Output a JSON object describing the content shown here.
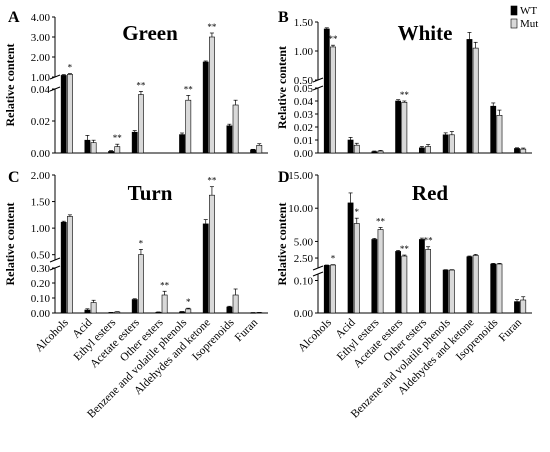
{
  "legend": [
    {
      "label": "WT",
      "color": "#000000"
    },
    {
      "label": "Mut",
      "color": "#d9d9d9"
    }
  ],
  "chart_data": [
    {
      "type": "bar",
      "letter": "A",
      "title": "Green",
      "ylabel": "Relative content",
      "categories": [
        "Alcohols",
        "Acid",
        "Ethyl esters",
        "Acetate esters",
        "Other esters",
        "Benzene and volatile phenols",
        "Aldehydes and ketone",
        "Isoprenoids",
        "Furan"
      ],
      "axis_break": {
        "lower": [
          0,
          0.04
        ],
        "upper": [
          1,
          4
        ]
      },
      "lower_ticks": [
        "0.00",
        "0.02",
        "0.04"
      ],
      "upper_ticks": [
        "1.00",
        "2.00",
        "3.00",
        "4.00"
      ],
      "series": [
        {
          "name": "WT",
          "values": [
            1.08,
            0.008,
            0.001,
            0.013,
            null,
            0.0115,
            1.75,
            0.017,
            0.002
          ],
          "errors": [
            0.04,
            0.003,
            0.0005,
            0.001,
            0,
            0.001,
            0.05,
            0.001,
            0.0003
          ]
        },
        {
          "name": "Mut",
          "values": [
            1.13,
            0.0065,
            0.004,
            0.0365,
            null,
            0.033,
            3.0,
            0.03,
            0.0048
          ],
          "errors": [
            0.04,
            0.0015,
            0.0015,
            0.002,
            0,
            0.003,
            0.2,
            0.003,
            0.001
          ]
        }
      ],
      "significance": [
        [
          "",
          "*"
        ],
        [
          "",
          ""
        ],
        [
          "",
          "**"
        ],
        [
          "",
          "**"
        ],
        [
          "",
          ""
        ],
        [
          "",
          "**"
        ],
        [
          "",
          "**"
        ],
        [
          "",
          ""
        ],
        [
          "",
          ""
        ]
      ]
    },
    {
      "type": "bar",
      "letter": "B",
      "title": "White",
      "ylabel": "Relative content",
      "categories": [
        "Alcohols",
        "Acid",
        "Ethyl esters",
        "Acetate esters",
        "Other esters",
        "Benzene and volatile phenols",
        "Aldehydes and ketone",
        "Isoprenoids",
        "Furan"
      ],
      "axis_break": {
        "lower": [
          0,
          0.05
        ],
        "upper": [
          0.5,
          1.5
        ]
      },
      "lower_ticks": [
        "0.00",
        "0.01",
        "0.02",
        "0.03",
        "0.04",
        "0.05"
      ],
      "upper_ticks": [
        "0.50",
        "1.00",
        "1.50"
      ],
      "series": [
        {
          "name": "WT",
          "values": [
            1.38,
            0.01,
            0.001,
            0.04,
            0.004,
            0.014,
            1.2,
            0.036,
            0.0035
          ],
          "errors": [
            0.02,
            0.002,
            0.0005,
            0.001,
            0.001,
            0.0015,
            0.12,
            0.0025,
            0.0005
          ]
        },
        {
          "name": "Mut",
          "values": [
            1.07,
            0.006,
            0.0015,
            0.039,
            0.005,
            0.014,
            1.05,
            0.029,
            0.003
          ],
          "errors": [
            0.03,
            0.0015,
            0.0005,
            0.001,
            0.0015,
            0.0025,
            0.1,
            0.004,
            0.0008
          ]
        }
      ],
      "significance": [
        [
          "",
          "**"
        ],
        [
          "",
          ""
        ],
        [
          "",
          ""
        ],
        [
          "",
          "**"
        ],
        [
          "",
          ""
        ],
        [
          "",
          ""
        ],
        [
          "",
          ""
        ],
        [
          "",
          ""
        ],
        [
          "",
          ""
        ]
      ]
    },
    {
      "type": "bar",
      "letter": "C",
      "title": "Turn",
      "ylabel": "Relative content",
      "categories": [
        "Alcohols",
        "Acid",
        "Ethyl esters",
        "Acetate esters",
        "Other esters",
        "Benzene and volatile phenols",
        "Aldehydes and ketone",
        "Isoprenoids",
        "Furan"
      ],
      "axis_break": {
        "lower": [
          0,
          0.3
        ],
        "upper": [
          0.4,
          2.0
        ]
      },
      "lower_ticks": [
        "0.00",
        "0.10",
        "0.20",
        "0.30"
      ],
      "upper_ticks": [
        "0.50",
        "1.00",
        "1.50",
        "2.00"
      ],
      "series": [
        {
          "name": "WT",
          "values": [
            1.11,
            0.02,
            0.003,
            0.09,
            0.005,
            0.008,
            1.08,
            0.04,
            0.002
          ],
          "errors": [
            0.02,
            0.008,
            0.001,
            0.005,
            0.002,
            0.002,
            0.08,
            0.005,
            0.001
          ]
        },
        {
          "name": "Mut",
          "values": [
            1.22,
            0.07,
            0.007,
            0.5,
            0.12,
            0.027,
            1.62,
            0.12,
            0.003
          ],
          "errors": [
            0.03,
            0.015,
            0.002,
            0.1,
            0.025,
            0.005,
            0.16,
            0.04,
            0.001
          ]
        }
      ],
      "significance": [
        [
          "",
          ""
        ],
        [
          "",
          ""
        ],
        [
          "",
          ""
        ],
        [
          "",
          "*"
        ],
        [
          "",
          "**"
        ],
        [
          "",
          "*"
        ],
        [
          "",
          "**"
        ],
        [
          "",
          ""
        ],
        [
          "",
          ""
        ]
      ]
    },
    {
      "type": "bar",
      "letter": "D",
      "title": "Red",
      "ylabel": "Relative content",
      "categories": [
        "Alcohols",
        "Acid",
        "Ethyl esters",
        "Acetate esters",
        "Other esters",
        "Benzene and volatile phenols",
        "Aldehydes and ketone",
        "Isoprenoids",
        "Furan"
      ],
      "axis_break": {
        "lower": [
          0,
          0.12
        ],
        "upper": [
          1.0,
          15.0
        ]
      },
      "lower_ticks": [
        "0.00",
        "0.10"
      ],
      "upper_ticks": [
        "2.50",
        "5.00",
        "10.00",
        "15.00"
      ],
      "series": [
        {
          "name": "WT",
          "values": [
            1.4,
            10.8,
            5.3,
            3.5,
            5.3,
            0.7,
            2.7,
            1.6,
            0.035
          ],
          "errors": [
            0.05,
            1.5,
            0.15,
            0.15,
            0.2,
            0.05,
            0.1,
            0.1,
            0.006
          ]
        },
        {
          "name": "Mut",
          "values": [
            1.45,
            7.7,
            6.8,
            2.8,
            3.8,
            0.7,
            2.9,
            1.6,
            0.04
          ],
          "errors": [
            0.05,
            0.8,
            0.3,
            0.15,
            0.4,
            0.05,
            0.15,
            0.1,
            0.01
          ]
        }
      ],
      "significance": [
        [
          "",
          "*"
        ],
        [
          "",
          "*"
        ],
        [
          "",
          "**"
        ],
        [
          "",
          "**"
        ],
        [
          "",
          "**"
        ],
        [
          "",
          ""
        ],
        [
          "",
          ""
        ],
        [
          "",
          ""
        ],
        [
          "",
          ""
        ]
      ]
    }
  ]
}
